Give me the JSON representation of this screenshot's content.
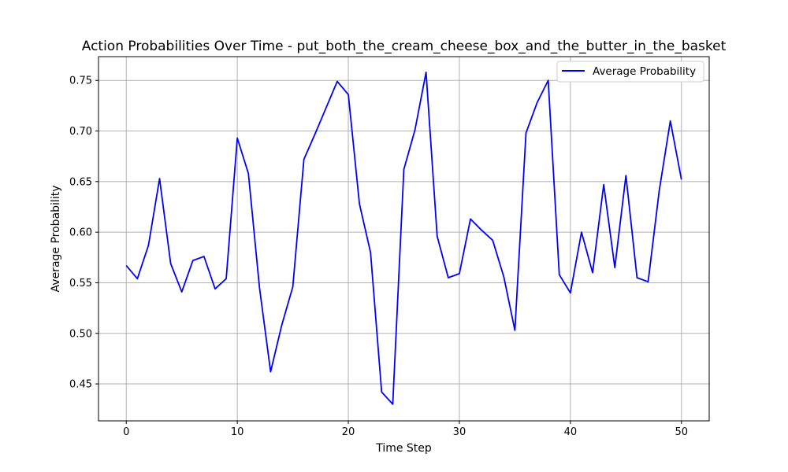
{
  "chart_data": {
    "type": "line",
    "title": "Action Probabilities Over Time - put_both_the_cream_cheese_box_and_the_butter_in_the_basket",
    "xlabel": "Time Step",
    "ylabel": "Average Probability",
    "xlim": [
      -2.5,
      52.5
    ],
    "ylim": [
      0.4135,
      0.7735
    ],
    "xticks": [
      0,
      10,
      20,
      30,
      40,
      50
    ],
    "yticks": [
      0.45,
      0.5,
      0.55,
      0.6,
      0.65,
      0.7,
      0.75
    ],
    "grid": true,
    "legend_position": "top-right",
    "series": [
      {
        "name": "Average Probability",
        "color": "#0000ff",
        "x": [
          0,
          1,
          2,
          3,
          4,
          5,
          6,
          7,
          8,
          9,
          10,
          11,
          12,
          13,
          14,
          15,
          16,
          17,
          18,
          19,
          20,
          21,
          22,
          23,
          24,
          25,
          26,
          27,
          28,
          29,
          30,
          31,
          32,
          33,
          34,
          35,
          36,
          37,
          38,
          39,
          40,
          41,
          42,
          43,
          44,
          45,
          46,
          47,
          48,
          49,
          50
        ],
        "y": [
          0.567,
          0.554,
          0.587,
          0.653,
          0.569,
          0.541,
          0.572,
          0.576,
          0.544,
          0.554,
          0.693,
          0.658,
          0.545,
          0.462,
          0.508,
          0.546,
          0.672,
          0.697,
          0.723,
          0.749,
          0.736,
          0.628,
          0.58,
          0.442,
          0.43,
          0.662,
          0.701,
          0.758,
          0.596,
          0.555,
          0.559,
          0.613,
          0.602,
          0.592,
          0.556,
          0.503,
          0.698,
          0.728,
          0.75,
          0.558,
          0.54,
          0.6,
          0.56,
          0.647,
          0.565,
          0.656,
          0.555,
          0.551,
          0.641,
          0.71,
          0.652
        ]
      }
    ]
  }
}
